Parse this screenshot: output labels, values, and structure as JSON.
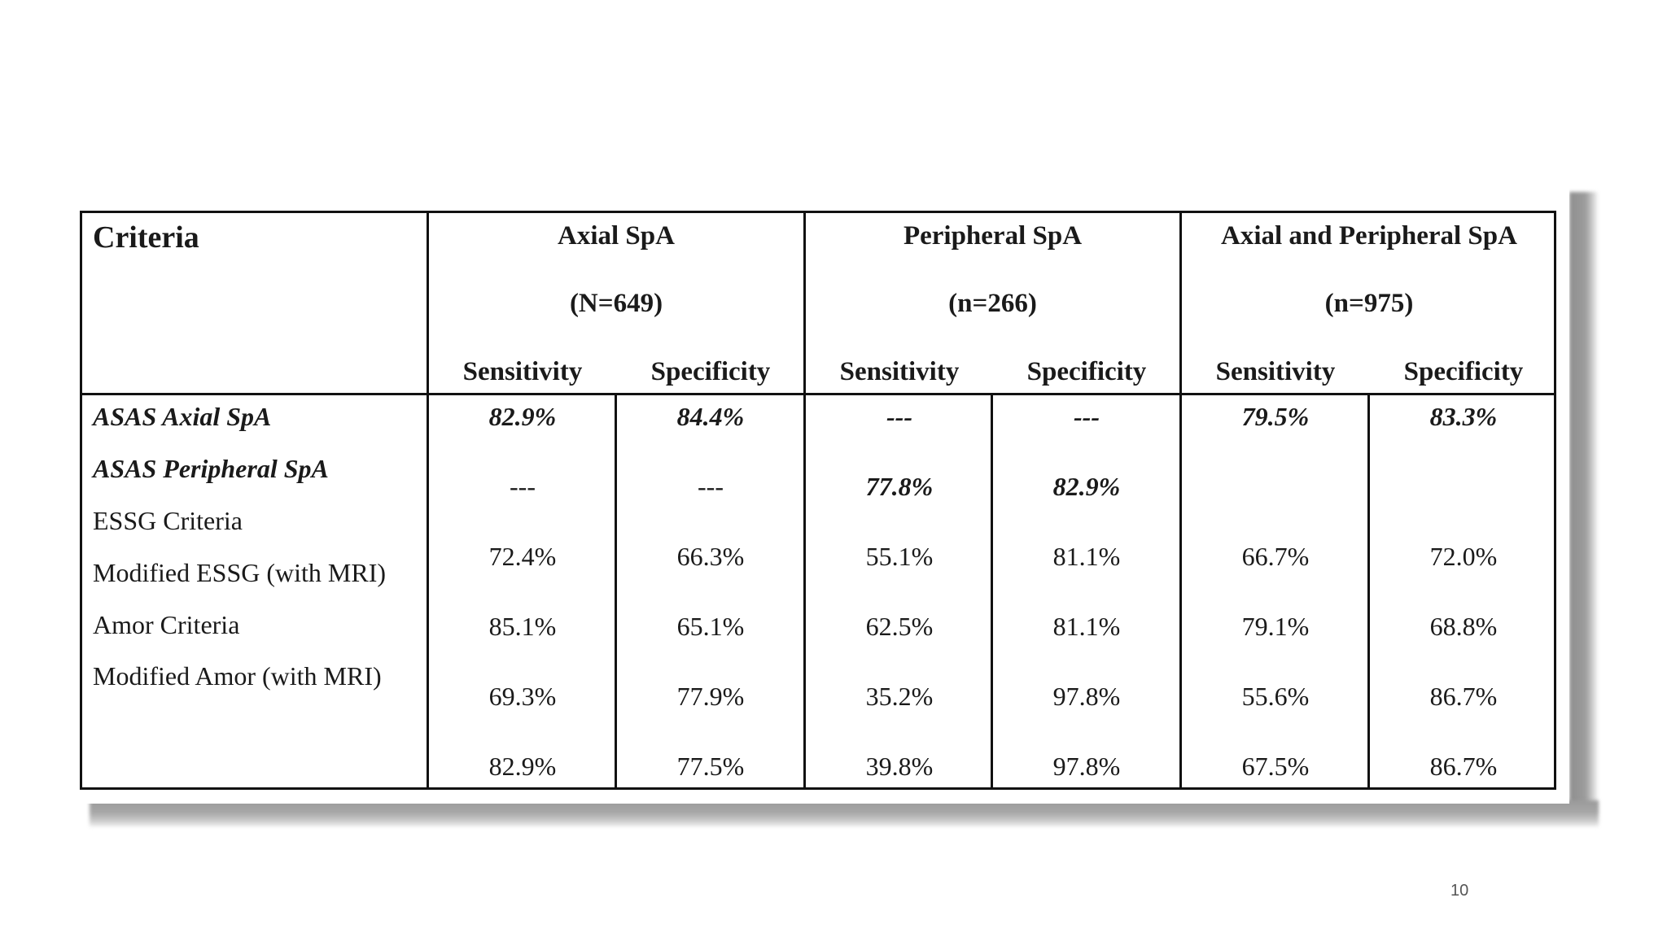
{
  "table": {
    "criteria_header": "Criteria",
    "groups": [
      {
        "name": "Axial SpA",
        "n": "(N=649)"
      },
      {
        "name": "Peripheral SpA",
        "n": "(n=266)"
      },
      {
        "name": "Axial and Peripheral SpA",
        "n": "(n=975)"
      }
    ],
    "subheaders": [
      "Sensitivity",
      "Specificity",
      "Sensitivity",
      "Specificity",
      "Sensitivity",
      "Specificity"
    ],
    "row_labels": [
      "ASAS Axial SpA",
      "ASAS Peripheral SpA",
      "ESSG Criteria",
      "Modified ESSG (with MRI)",
      "Amor Criteria",
      "Modified Amor (with MRI)"
    ],
    "rows": [
      [
        "82.9%",
        "84.4%",
        "---",
        "---",
        "79.5%",
        "83.3%"
      ],
      [
        "---",
        "---",
        "77.8%",
        "82.9%",
        "",
        ""
      ],
      [
        "72.4%",
        "66.3%",
        "55.1%",
        "81.1%",
        "66.7%",
        "72.0%"
      ],
      [
        "85.1%",
        "65.1%",
        "62.5%",
        "81.1%",
        "79.1%",
        "68.8%"
      ],
      [
        "69.3%",
        "77.9%",
        "35.2%",
        "97.8%",
        "55.6%",
        "86.7%"
      ],
      [
        "82.9%",
        "77.5%",
        "39.8%",
        "97.8%",
        "67.5%",
        "86.7%"
      ]
    ]
  },
  "page_number": "10"
}
